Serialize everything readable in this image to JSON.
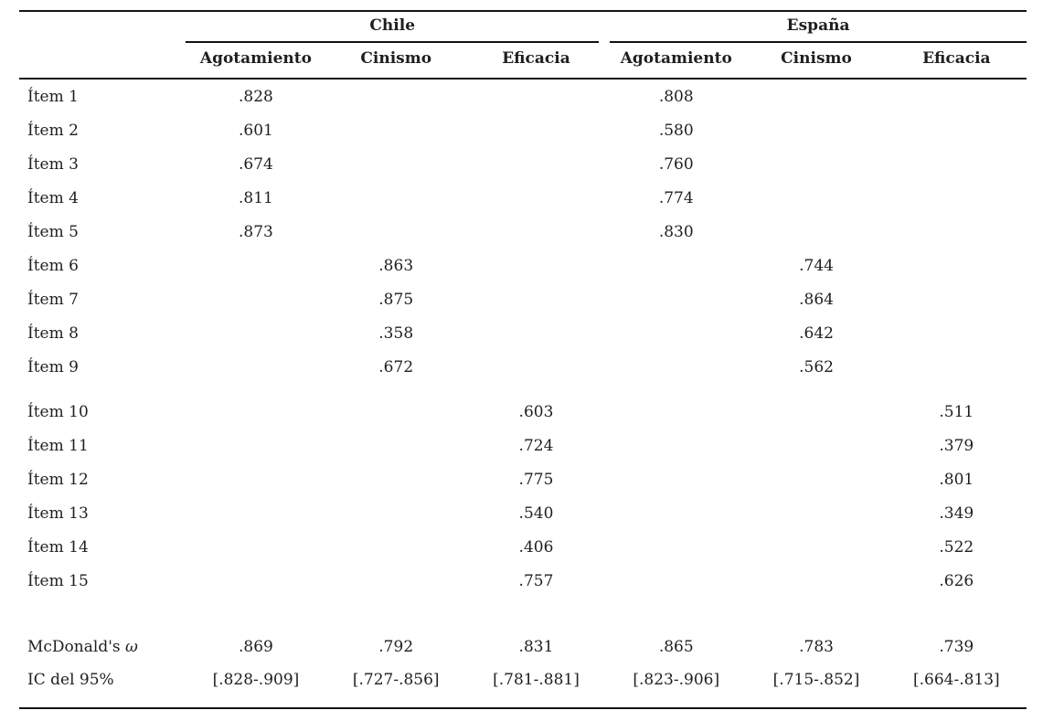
{
  "page": {
    "background_color": "#ffffff",
    "text_color": "#1f1f1f",
    "rule_color": "#131313"
  },
  "table": {
    "column_groups": [
      {
        "label": "Chile"
      },
      {
        "label": "España"
      }
    ],
    "column_headers": [
      "Agotamiento",
      "Cinismo",
      "Eficacia",
      "Agotamiento",
      "Cinismo",
      "Eficacia"
    ],
    "rows": [
      {
        "label": "Ítem 1",
        "values": [
          ".828",
          "",
          "",
          ".808",
          "",
          ""
        ]
      },
      {
        "label": "Ítem 2",
        "values": [
          ".601",
          "",
          "",
          ".580",
          "",
          ""
        ]
      },
      {
        "label": "Ítem 3",
        "values": [
          ".674",
          "",
          "",
          ".760",
          "",
          ""
        ]
      },
      {
        "label": "Ítem 4",
        "values": [
          ".811",
          "",
          "",
          ".774",
          "",
          ""
        ]
      },
      {
        "label": "Ítem 5",
        "values": [
          ".873",
          "",
          "",
          ".830",
          "",
          ""
        ]
      },
      {
        "label": "Ítem 6",
        "values": [
          "",
          ".863",
          "",
          "",
          ".744",
          ""
        ]
      },
      {
        "label": "Ítem 7",
        "values": [
          "",
          ".875",
          "",
          "",
          ".864",
          ""
        ]
      },
      {
        "label": "Ítem 8",
        "values": [
          "",
          ".358",
          "",
          "",
          ".642",
          ""
        ]
      },
      {
        "label": "Ítem 9",
        "values": [
          "",
          ".672",
          "",
          "",
          ".562",
          ""
        ]
      },
      {
        "label": "Ítem 10",
        "values": [
          "",
          "",
          ".603",
          "",
          "",
          ".511"
        ]
      },
      {
        "label": "Ítem 11",
        "values": [
          "",
          "",
          ".724",
          "",
          "",
          ".379"
        ]
      },
      {
        "label": "Ítem 12",
        "values": [
          "",
          "",
          ".775",
          "",
          "",
          ".801"
        ]
      },
      {
        "label": "Ítem 13",
        "values": [
          "",
          "",
          ".540",
          "",
          "",
          ".349"
        ]
      },
      {
        "label": "Ítem 14",
        "values": [
          "",
          "",
          ".406",
          "",
          "",
          ".522"
        ]
      },
      {
        "label": "Ítem 15",
        "values": [
          "",
          "",
          ".757",
          "",
          "",
          ".626"
        ]
      }
    ],
    "summary_rows": [
      {
        "label_prefix": "McDonald's",
        "label_symbol": "ω",
        "values": [
          ".869",
          ".792",
          ".831",
          ".865",
          ".783",
          ".739"
        ]
      },
      {
        "label": "IC del 95%",
        "values": [
          "[.828-.909]",
          "[.727-.856]",
          "[.781-.881]",
          "[.823-.906]",
          "[.715-.852]",
          "[.664-.813]"
        ]
      }
    ]
  }
}
